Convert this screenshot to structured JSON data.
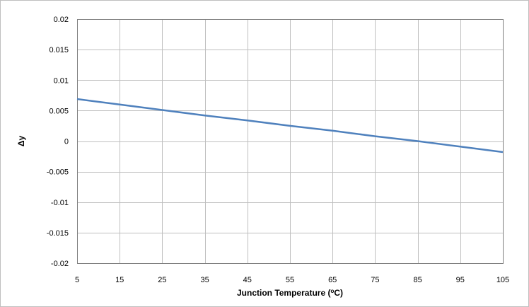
{
  "chart_data": {
    "type": "line",
    "title": "",
    "xlabel": "Junction Temperature (°C)",
    "xlabel_parts": {
      "before": "Junction Temperature (",
      "superscript": "o",
      "after": "C)"
    },
    "ylabel": "Δy",
    "xlim": [
      5,
      105
    ],
    "ylim": [
      -0.02,
      0.02
    ],
    "x_ticks": [
      5,
      15,
      25,
      35,
      45,
      55,
      65,
      75,
      85,
      95,
      105
    ],
    "y_ticks": [
      0.02,
      0.015,
      0.01,
      0.005,
      0,
      -0.005,
      -0.01,
      -0.015,
      -0.02
    ],
    "x_tick_labels": [
      "5",
      "15",
      "25",
      "35",
      "45",
      "55",
      "65",
      "75",
      "85",
      "95",
      "105"
    ],
    "y_tick_labels": [
      "0.02",
      "0.015",
      "0.01",
      "0.005",
      "0",
      "-0.005",
      "-0.01",
      "-0.015",
      "-0.02"
    ],
    "grid": true,
    "legend": "none",
    "series": [
      {
        "color": "#4f81bd",
        "x": [
          5,
          15,
          25,
          35,
          45,
          55,
          65,
          75,
          85,
          95,
          105
        ],
        "y": [
          0.0069,
          0.006,
          0.0051,
          0.0042,
          0.0034,
          0.0025,
          0.0017,
          0.0008,
          0.0,
          -0.0009,
          -0.0018
        ]
      }
    ],
    "colors": {
      "grid": "#bfbfbf",
      "plot_border": "#808080",
      "line": "#4f81bd"
    }
  }
}
